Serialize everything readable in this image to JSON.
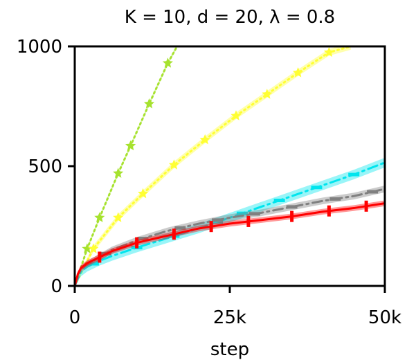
{
  "chart_data": {
    "type": "line",
    "title": "K = 10, d = 20, λ = 0.8",
    "xlabel": "step",
    "ylabel": "",
    "xlim": [
      0,
      50000
    ],
    "ylim": [
      0,
      1000
    ],
    "x_ticks": [
      0,
      25000,
      50000
    ],
    "x_tick_labels": [
      "0",
      "25k",
      "50k"
    ],
    "y_ticks": [
      0,
      500,
      1000
    ],
    "y_tick_labels": [
      "0",
      "500",
      "1000"
    ],
    "grid": false,
    "legend": "none",
    "series": [
      {
        "color": "#a6e22e",
        "style": "dotted",
        "marker": "star",
        "band": 8,
        "x": [
          0,
          2000,
          4000,
          7000,
          9000,
          12000,
          15000,
          16500
        ],
        "y": [
          0,
          155,
          285,
          470,
          585,
          760,
          930,
          1000
        ],
        "marker_x": [
          2000,
          4000,
          7000,
          9000,
          12000,
          15000
        ]
      },
      {
        "color": "#ffff33",
        "style": "dotted",
        "marker": "star",
        "band": 14,
        "x": [
          0,
          3000,
          7000,
          11000,
          16000,
          21000,
          26000,
          31000,
          36000,
          41000,
          44500
        ],
        "y": [
          0,
          155,
          285,
          385,
          505,
          610,
          710,
          800,
          890,
          975,
          1000
        ],
        "marker_x": [
          3000,
          7000,
          11000,
          16000,
          21000,
          26000,
          31000,
          36000,
          41000
        ]
      },
      {
        "color": "#00e5ee",
        "style": "dashdot",
        "marker": "hline",
        "band": 20,
        "x": [
          0,
          1000,
          2000,
          4000,
          6000,
          10000,
          15000,
          20000,
          25000,
          30000,
          35000,
          40000,
          45000,
          50000
        ],
        "y": [
          0,
          60,
          80,
          105,
          125,
          160,
          200,
          240,
          285,
          330,
          375,
          420,
          465,
          515
        ],
        "marker_x": [
          3000,
          10000,
          16000,
          23000,
          27000,
          33000,
          39000,
          45000
        ]
      },
      {
        "color": "#808080",
        "style": "dashdot",
        "marker": "hline",
        "band": 14,
        "x": [
          0,
          1000,
          2000,
          4000,
          6000,
          10000,
          15000,
          20000,
          25000,
          30000,
          35000,
          40000,
          45000,
          50000
        ],
        "y": [
          0,
          70,
          90,
          120,
          150,
          190,
          230,
          260,
          285,
          305,
          330,
          355,
          375,
          405
        ],
        "marker_x": [
          5000,
          11000,
          17000,
          23000,
          29000,
          35000,
          42000,
          48000
        ]
      },
      {
        "color": "#ff0000",
        "style": "solid",
        "marker": "vline",
        "band": 12,
        "x": [
          0,
          500,
          1000,
          2000,
          4000,
          6000,
          10000,
          15000,
          20000,
          25000,
          30000,
          35000,
          40000,
          45000,
          50000
        ],
        "y": [
          0,
          50,
          75,
          95,
          120,
          145,
          180,
          210,
          240,
          260,
          275,
          290,
          310,
          325,
          345
        ],
        "marker_x": [
          4000,
          10000,
          16000,
          22000,
          28000,
          35000,
          41000,
          47000
        ]
      }
    ]
  }
}
